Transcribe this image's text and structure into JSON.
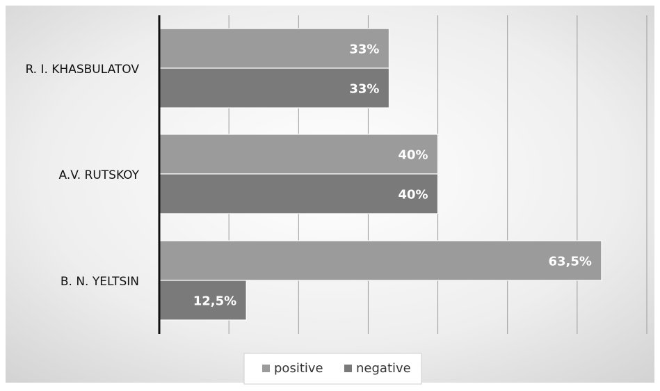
{
  "chart_data": {
    "type": "bar",
    "orientation": "horizontal",
    "categories": [
      "R. I. KHASBULATOV",
      "A.V. RUTSKOY",
      "B. N. YELTSIN"
    ],
    "series": [
      {
        "name": "positive",
        "values": [
          33,
          40,
          63.5
        ],
        "labels": [
          "33%",
          "40%",
          "63,5%"
        ],
        "color": "#9b9b9b"
      },
      {
        "name": "negative",
        "values": [
          33,
          40,
          12.5
        ],
        "labels": [
          "33%",
          "40%",
          "12,5%"
        ],
        "color": "#7a7a7a"
      }
    ],
    "xlim": [
      0,
      70
    ],
    "grid": true,
    "legend": "bottom",
    "title": "",
    "xlabel": "",
    "ylabel": ""
  }
}
